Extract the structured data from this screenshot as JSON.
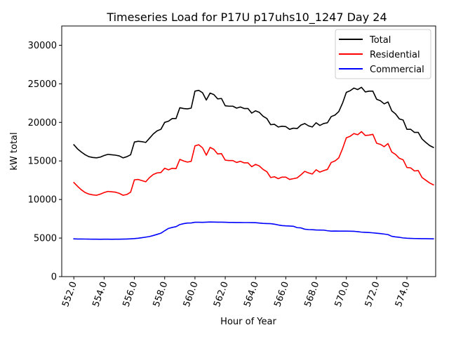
{
  "chart_data": {
    "type": "line",
    "title": "Timeseries Load for P17U p17uhs10_1247  Day 24",
    "xlabel": "Hour of Year",
    "ylabel": "kW total",
    "xlim": [
      551.2,
      575.9
    ],
    "ylim": [
      0,
      32500
    ],
    "xticks": [
      552,
      554,
      556,
      558,
      560,
      562,
      564,
      566,
      568,
      570,
      572,
      574
    ],
    "xtick_labels": [
      "552.0",
      "554.0",
      "556.0",
      "558.0",
      "560.0",
      "562.0",
      "564.0",
      "566.0",
      "568.0",
      "570.0",
      "572.0",
      "574.0"
    ],
    "yticks": [
      0,
      5000,
      10000,
      15000,
      20000,
      25000,
      30000
    ],
    "ytick_labels": [
      "0",
      "5000",
      "10000",
      "15000",
      "20000",
      "25000",
      "30000"
    ],
    "legend_position": "top-right",
    "x_start": 552.0,
    "x_step": 0.25,
    "series": [
      {
        "name": "Total",
        "color": "#000000",
        "values": [
          17100,
          16550,
          16150,
          15800,
          15550,
          15450,
          15400,
          15500,
          15700,
          15850,
          15800,
          15750,
          15650,
          15400,
          15550,
          15800,
          17450,
          17550,
          17500,
          17400,
          17950,
          18500,
          18900,
          19100,
          20000,
          20150,
          20500,
          20500,
          21900,
          21800,
          21750,
          21850,
          24050,
          24150,
          23850,
          22900,
          23800,
          23600,
          23050,
          23100,
          22150,
          22100,
          22100,
          21850,
          22000,
          21800,
          21800,
          21200,
          21500,
          21300,
          20800,
          20500,
          19700,
          19750,
          19400,
          19500,
          19450,
          19100,
          19250,
          19200,
          19650,
          19850,
          19550,
          19400,
          19950,
          19600,
          19850,
          19950,
          20750,
          20950,
          21400,
          22500,
          23900,
          24100,
          24450,
          24250,
          24550,
          23950,
          24050,
          24050,
          23000,
          22800,
          22400,
          22650,
          21500,
          21100,
          20450,
          20300,
          19100,
          19100,
          18700,
          18700,
          17850,
          17400,
          17000,
          16750
        ]
      },
      {
        "name": "Residential",
        "color": "#ff0000",
        "values": [
          12200,
          11700,
          11250,
          10900,
          10700,
          10600,
          10550,
          10700,
          10900,
          11050,
          11000,
          10950,
          10800,
          10550,
          10650,
          10950,
          12550,
          12600,
          12450,
          12300,
          12850,
          13250,
          13450,
          13500,
          14050,
          13850,
          14050,
          14000,
          15200,
          15000,
          14850,
          14950,
          16950,
          17100,
          16700,
          15750,
          16750,
          16500,
          15900,
          15950,
          15100,
          15050,
          15050,
          14800,
          14950,
          14750,
          14750,
          14250,
          14550,
          14350,
          13900,
          13600,
          12850,
          12950,
          12700,
          12900,
          12900,
          12600,
          12700,
          12800,
          13200,
          13650,
          13450,
          13300,
          13850,
          13550,
          13750,
          13900,
          14800,
          15000,
          15400,
          16600,
          18000,
          18200,
          18550,
          18400,
          18800,
          18300,
          18350,
          18450,
          17300,
          17150,
          16850,
          17250,
          16150,
          15850,
          15350,
          15150,
          14150,
          14100,
          13700,
          13750,
          12850,
          12500,
          12150,
          11900
        ]
      },
      {
        "name": "Commercial",
        "color": "#0000ff",
        "values": [
          4900,
          4880,
          4880,
          4870,
          4860,
          4850,
          4850,
          4840,
          4850,
          4850,
          4840,
          4850,
          4850,
          4860,
          4880,
          4900,
          4930,
          4980,
          5050,
          5120,
          5200,
          5330,
          5480,
          5630,
          5950,
          6250,
          6380,
          6480,
          6750,
          6870,
          6950,
          6960,
          7050,
          7050,
          7040,
          7060,
          7080,
          7070,
          7060,
          7060,
          7050,
          7030,
          7030,
          7020,
          7020,
          7010,
          7010,
          7000,
          6990,
          6950,
          6900,
          6880,
          6870,
          6800,
          6700,
          6620,
          6580,
          6560,
          6530,
          6350,
          6320,
          6150,
          6100,
          6080,
          6050,
          6040,
          6030,
          5950,
          5900,
          5910,
          5900,
          5900,
          5900,
          5890,
          5880,
          5830,
          5770,
          5740,
          5720,
          5680,
          5630,
          5580,
          5520,
          5450,
          5230,
          5150,
          5100,
          5020,
          4980,
          4960,
          4940,
          4930,
          4920,
          4920,
          4910,
          4900
        ]
      }
    ]
  }
}
